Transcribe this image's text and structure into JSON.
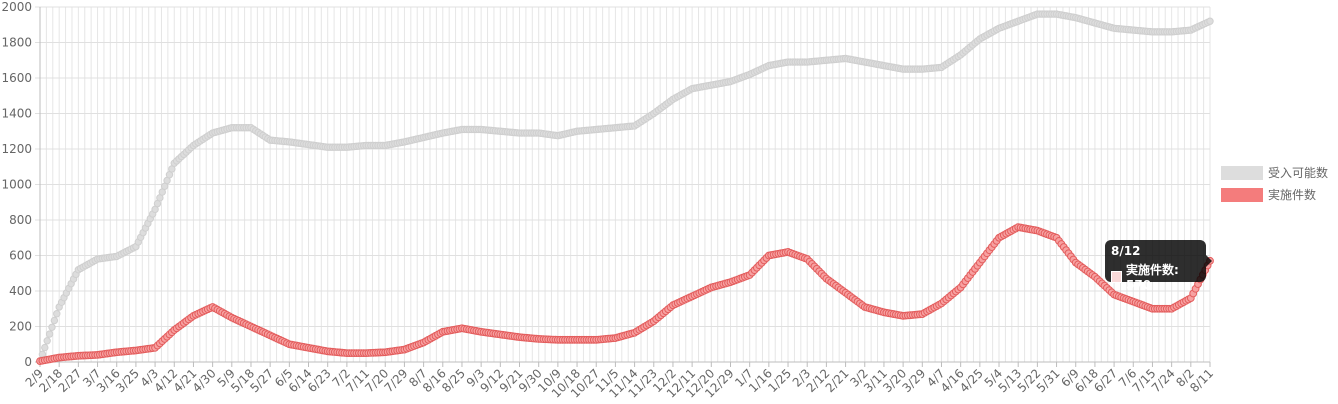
{
  "chart_data": {
    "type": "line",
    "ylim": [
      0,
      2000
    ],
    "y_ticks": [
      0,
      200,
      400,
      600,
      800,
      1000,
      1200,
      1400,
      1600,
      1800,
      2000
    ],
    "x_tick_labels": [
      "2/9",
      "2/18",
      "2/27",
      "3/7",
      "3/16",
      "3/25",
      "4/3",
      "4/12",
      "4/21",
      "4/30",
      "5/9",
      "5/18",
      "5/27",
      "6/5",
      "6/14",
      "6/23",
      "7/2",
      "7/11",
      "7/20",
      "7/29",
      "8/7",
      "8/16",
      "8/25",
      "9/3",
      "9/12",
      "9/21",
      "9/30",
      "10/9",
      "10/18",
      "10/27",
      "11/5",
      "11/14",
      "11/23",
      "12/2",
      "12/11",
      "12/20",
      "12/29",
      "1/7",
      "1/16",
      "1/25",
      "2/3",
      "2/12",
      "2/21",
      "3/2",
      "3/11",
      "3/20",
      "3/29",
      "4/7",
      "4/16",
      "4/25",
      "5/4",
      "5/13",
      "5/22",
      "5/31",
      "6/9",
      "6/18",
      "6/27",
      "7/6",
      "7/15",
      "7/24",
      "8/2",
      "8/11"
    ],
    "grid": true,
    "legend_position": "right",
    "series": [
      {
        "name": "受入可能数",
        "color": "#dddddd",
        "values": [
          5,
          310,
          520,
          580,
          595,
          650,
          860,
          1120,
          1220,
          1290,
          1320,
          1320,
          1250,
          1240,
          1225,
          1210,
          1210,
          1220,
          1220,
          1240,
          1265,
          1290,
          1310,
          1310,
          1300,
          1290,
          1290,
          1275,
          1300,
          1310,
          1320,
          1330,
          1400,
          1480,
          1540,
          1560,
          1580,
          1620,
          1670,
          1690,
          1690,
          1700,
          1710,
          1690,
          1670,
          1650,
          1650,
          1660,
          1730,
          1820,
          1880,
          1920,
          1960,
          1960,
          1940,
          1910,
          1880,
          1870,
          1860,
          1860,
          1870,
          1920
        ]
      },
      {
        "name": "実施件数",
        "color": "#f47c7c",
        "values": [
          5,
          25,
          35,
          40,
          55,
          65,
          80,
          180,
          260,
          310,
          250,
          200,
          150,
          100,
          80,
          60,
          50,
          50,
          55,
          70,
          110,
          170,
          190,
          170,
          155,
          140,
          130,
          125,
          125,
          125,
          135,
          165,
          230,
          320,
          370,
          420,
          450,
          490,
          600,
          620,
          580,
          470,
          390,
          310,
          280,
          260,
          270,
          330,
          420,
          560,
          700,
          760,
          740,
          700,
          560,
          480,
          380,
          340,
          300,
          300,
          360,
          570
        ]
      }
    ]
  },
  "tooltip": {
    "title": "8/12",
    "label": "実施件数: 570"
  }
}
